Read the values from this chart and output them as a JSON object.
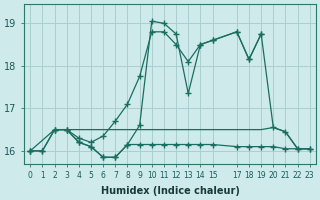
{
  "xlabel": "Humidex (Indice chaleur)",
  "bg_color": "#ceeaea",
  "grid_color": "#aacece",
  "line_color": "#1a6e5e",
  "xlim": [
    -0.5,
    23.5
  ],
  "ylim": [
    15.7,
    19.45
  ],
  "yticks": [
    16,
    17,
    18,
    19
  ],
  "xticks": [
    0,
    1,
    2,
    3,
    4,
    5,
    6,
    7,
    8,
    9,
    10,
    11,
    12,
    13,
    14,
    15,
    17,
    18,
    19,
    20,
    21,
    22,
    23
  ],
  "line1_x": [
    0,
    1,
    2,
    3,
    4,
    5,
    6,
    7,
    8,
    9,
    10,
    11,
    12,
    13,
    14,
    15,
    17,
    18,
    19,
    20,
    21,
    22,
    23
  ],
  "line1_y": [
    16.0,
    16.0,
    16.5,
    16.5,
    16.2,
    16.1,
    15.85,
    15.85,
    16.15,
    16.6,
    19.05,
    19.0,
    18.75,
    17.35,
    18.5,
    18.6,
    18.8,
    18.15,
    18.75,
    16.55,
    16.45,
    16.05,
    16.05
  ],
  "line2_x": [
    0,
    2,
    3,
    4,
    5,
    6,
    7,
    8,
    9,
    10,
    11,
    12,
    13,
    14,
    15,
    17,
    18,
    19
  ],
  "line2_y": [
    16.0,
    16.5,
    16.5,
    16.3,
    16.2,
    16.35,
    16.7,
    17.1,
    17.75,
    18.8,
    18.8,
    18.5,
    18.1,
    18.5,
    18.6,
    18.8,
    18.15,
    18.75
  ],
  "line3_x": [
    2,
    19,
    20,
    21,
    22,
    23
  ],
  "line3_y": [
    16.5,
    16.5,
    16.55,
    16.45,
    16.05,
    16.05
  ],
  "line4_x": [
    0,
    1,
    2,
    3,
    4,
    5,
    6,
    7,
    8,
    9,
    10,
    11,
    12,
    13,
    14,
    15,
    17,
    18,
    19,
    20,
    21,
    22,
    23
  ],
  "line4_y": [
    16.0,
    16.0,
    16.5,
    16.5,
    16.2,
    16.1,
    15.85,
    15.85,
    16.15,
    16.15,
    16.15,
    16.15,
    16.15,
    16.15,
    16.15,
    16.15,
    16.1,
    16.1,
    16.1,
    16.1,
    16.05,
    16.05,
    16.05
  ]
}
